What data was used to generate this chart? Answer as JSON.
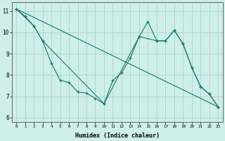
{
  "xlabel": "Humidex (Indice chaleur)",
  "xlim": [
    -0.5,
    23.5
  ],
  "ylim": [
    5.8,
    11.4
  ],
  "background_color": "#ceeee8",
  "grid_color": "#b0d8d0",
  "line_color": "#1a7a6a",
  "line1_x": [
    0,
    1,
    2,
    3,
    4,
    5,
    6,
    7,
    8,
    9,
    10,
    11,
    12,
    13,
    14,
    15,
    16,
    17,
    18,
    19,
    20,
    21,
    22,
    23
  ],
  "line1_y": [
    11.1,
    10.75,
    10.3,
    9.6,
    8.55,
    7.75,
    7.65,
    7.2,
    7.15,
    6.9,
    6.65,
    7.75,
    8.1,
    8.8,
    9.8,
    10.5,
    9.6,
    9.6,
    10.1,
    9.45,
    8.35,
    7.45,
    7.1,
    6.5
  ],
  "line2_x": [
    0,
    2,
    3,
    10,
    14,
    16,
    17,
    18,
    19,
    20,
    21,
    22,
    23
  ],
  "line2_y": [
    11.1,
    10.3,
    9.6,
    6.65,
    9.8,
    9.6,
    9.6,
    10.1,
    9.45,
    8.35,
    7.45,
    7.1,
    6.5
  ],
  "line3_x": [
    0,
    23
  ],
  "line3_y": [
    11.1,
    6.5
  ],
  "xtick_labels": [
    "0",
    "1",
    "2",
    "3",
    "4",
    "5",
    "6",
    "7",
    "8",
    "9",
    "10",
    "11",
    "12",
    "13",
    "14",
    "15",
    "16",
    "17",
    "18",
    "19",
    "20",
    "21",
    "22",
    "23"
  ],
  "ytick_values": [
    6,
    7,
    8,
    9,
    10,
    11
  ]
}
